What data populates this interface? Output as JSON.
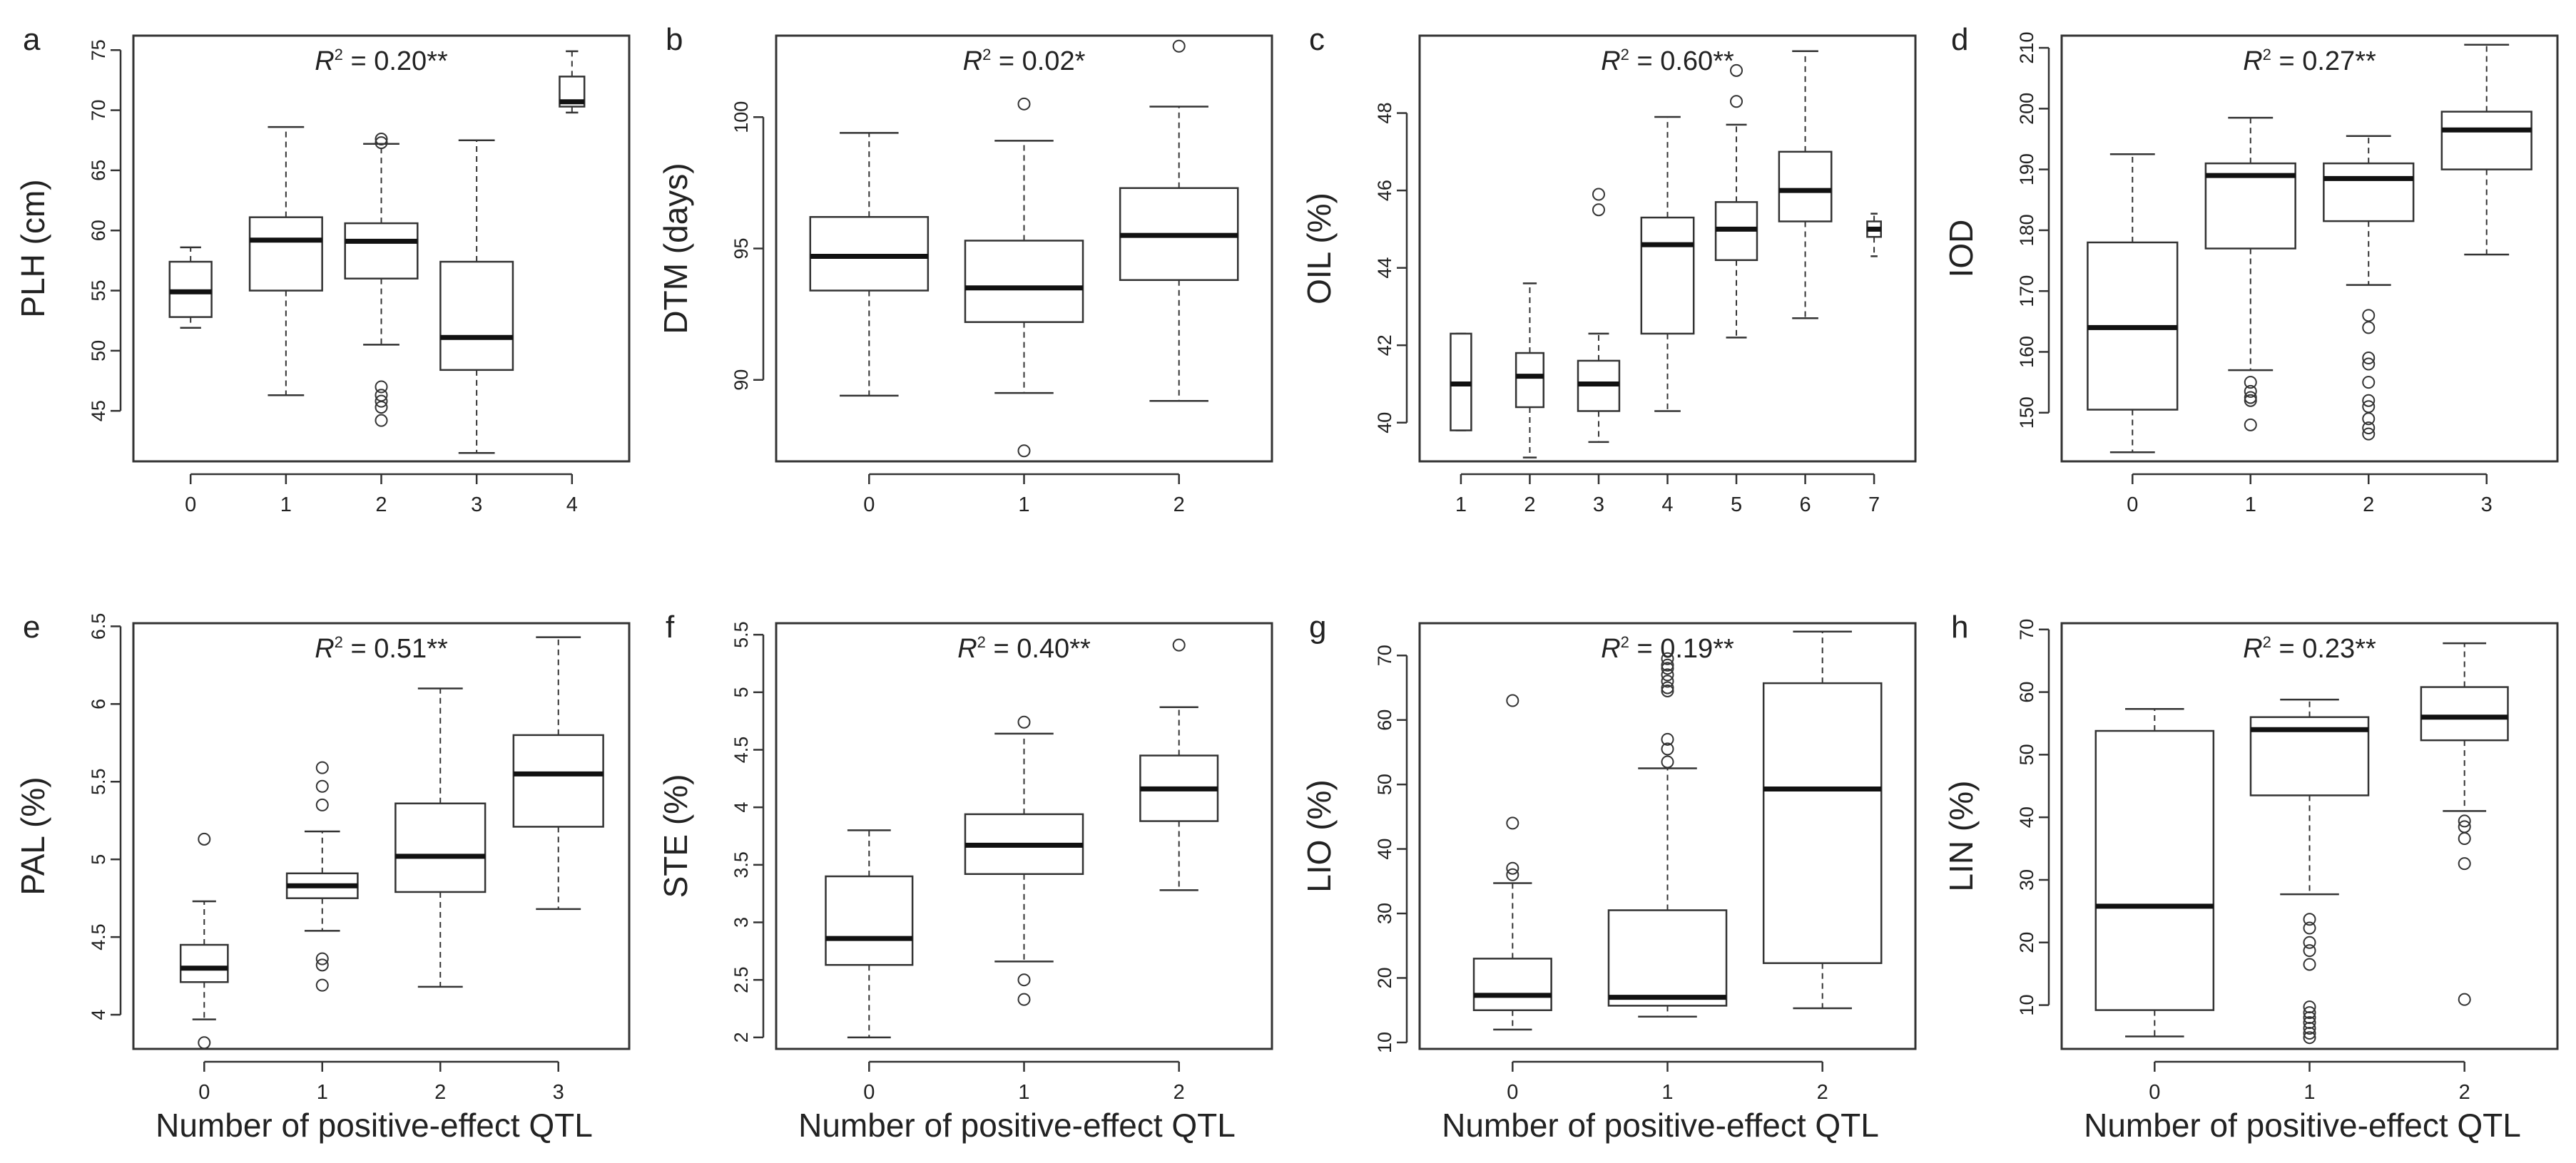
{
  "chart_data": [
    {
      "type": "box",
      "label": "a",
      "ylabel": "PLH (cm)",
      "r2": "= 0.20**",
      "ylim": [
        40.8,
        76.2
      ],
      "yticks": [
        45,
        50,
        55,
        60,
        65,
        70,
        75
      ],
      "xlim": [
        -0.6,
        4.6
      ],
      "xlabel": "",
      "boxes": [
        {
          "x": 0,
          "wmin": 51.9,
          "q1": 52.8,
          "med": 54.9,
          "q3": 57.4,
          "wmax": 58.6,
          "out": [],
          "half": 0.22
        },
        {
          "x": 1,
          "wmin": 46.3,
          "q1": 55.0,
          "med": 59.2,
          "q3": 61.1,
          "wmax": 68.6,
          "out": [],
          "half": 0.38
        },
        {
          "x": 2,
          "wmin": 50.5,
          "q1": 56.0,
          "med": 59.1,
          "q3": 60.6,
          "wmax": 67.2,
          "out": [
            67.6,
            67.3,
            47.0,
            46.3,
            45.8,
            45.3,
            44.2
          ],
          "half": 0.38
        },
        {
          "x": 3,
          "wmin": 41.5,
          "q1": 48.4,
          "med": 51.1,
          "q3": 57.4,
          "wmax": 67.5,
          "out": [],
          "half": 0.38
        },
        {
          "x": 4,
          "wmin": 69.8,
          "q1": 70.3,
          "med": 70.7,
          "q3": 72.8,
          "wmax": 74.9,
          "out": [],
          "half": 0.13
        }
      ]
    },
    {
      "type": "box",
      "label": "b",
      "ylabel": "DTM (days)",
      "r2": "= 0.02*",
      "ylim": [
        86.9,
        103.1
      ],
      "yticks": [
        90,
        95,
        100
      ],
      "xlim": [
        -0.6,
        2.6
      ],
      "xlabel": "",
      "boxes": [
        {
          "x": 0,
          "wmin": 89.4,
          "q1": 93.4,
          "med": 94.7,
          "q3": 96.2,
          "wmax": 99.4,
          "out": [],
          "half": 0.38
        },
        {
          "x": 1,
          "wmin": 89.5,
          "q1": 92.2,
          "med": 93.5,
          "q3": 95.3,
          "wmax": 99.1,
          "out": [
            100.5,
            87.3
          ],
          "half": 0.38
        },
        {
          "x": 2,
          "wmin": 89.2,
          "q1": 93.8,
          "med": 95.5,
          "q3": 97.3,
          "wmax": 100.4,
          "out": [
            102.7
          ],
          "half": 0.38
        }
      ]
    },
    {
      "type": "box",
      "label": "c",
      "ylabel": "OIL (%)",
      "r2": "= 0.60**",
      "ylim": [
        39.0,
        50.0
      ],
      "yticks": [
        40,
        42,
        44,
        46,
        48
      ],
      "xlim": [
        0.4,
        7.6
      ],
      "xlabel": "",
      "boxes": [
        {
          "x": 1,
          "wmin": 39.8,
          "q1": 39.8,
          "med": 41.0,
          "q3": 42.3,
          "wmax": 42.3,
          "out": [],
          "half": 0.15
        },
        {
          "x": 2,
          "wmin": 39.1,
          "q1": 40.4,
          "med": 41.2,
          "q3": 41.8,
          "wmax": 43.6,
          "out": [],
          "half": 0.2
        },
        {
          "x": 3,
          "wmin": 39.5,
          "q1": 40.3,
          "med": 41.0,
          "q3": 41.6,
          "wmax": 42.3,
          "out": [
            45.9,
            45.5
          ],
          "half": 0.3
        },
        {
          "x": 4,
          "wmin": 40.3,
          "q1": 42.3,
          "med": 44.6,
          "q3": 45.3,
          "wmax": 47.9,
          "out": [],
          "half": 0.38
        },
        {
          "x": 5,
          "wmin": 42.2,
          "q1": 44.2,
          "med": 45.0,
          "q3": 45.7,
          "wmax": 47.7,
          "out": [
            49.1,
            48.3
          ],
          "half": 0.3
        },
        {
          "x": 6,
          "wmin": 42.7,
          "q1": 45.2,
          "med": 46.0,
          "q3": 47.0,
          "wmax": 49.6,
          "out": [],
          "half": 0.38
        },
        {
          "x": 7,
          "wmin": 44.3,
          "q1": 44.8,
          "med": 45.0,
          "q3": 45.2,
          "wmax": 45.4,
          "out": [],
          "half": 0.1
        }
      ]
    },
    {
      "type": "box",
      "label": "d",
      "ylabel": "IOD",
      "r2": "= 0.27**",
      "ylim": [
        142,
        212
      ],
      "yticks": [
        150,
        160,
        170,
        180,
        190,
        200,
        210
      ],
      "xlim": [
        -0.6,
        3.6
      ],
      "xlabel": "",
      "boxes": [
        {
          "x": 0,
          "wmin": 143.5,
          "q1": 150.5,
          "med": 164.0,
          "q3": 178.0,
          "wmax": 192.5,
          "out": [],
          "half": 0.38
        },
        {
          "x": 1,
          "wmin": 157.0,
          "q1": 177.0,
          "med": 189.0,
          "q3": 191.0,
          "wmax": 198.5,
          "out": [
            155.0,
            153.5,
            152.5,
            152.0,
            148.0
          ],
          "half": 0.38
        },
        {
          "x": 2,
          "wmin": 171.0,
          "q1": 181.5,
          "med": 188.5,
          "q3": 191.0,
          "wmax": 195.5,
          "out": [
            166.0,
            164.0,
            159.0,
            158.0,
            155.0,
            152.0,
            151.0,
            149.0,
            147.5,
            146.5
          ],
          "half": 0.38
        },
        {
          "x": 3,
          "wmin": 176.0,
          "q1": 190.0,
          "med": 196.5,
          "q3": 199.5,
          "wmax": 210.5,
          "out": [],
          "half": 0.38
        }
      ]
    },
    {
      "type": "box",
      "label": "e",
      "ylabel": "PAL (%)",
      "r2": "= 0.51**",
      "ylim": [
        3.78,
        6.52
      ],
      "yticks": [
        4.0,
        4.5,
        5.0,
        5.5,
        6.0,
        6.5
      ],
      "xlim": [
        -0.6,
        3.6
      ],
      "xlabel": "Number of positive-effect QTL",
      "boxes": [
        {
          "x": 0,
          "wmin": 3.97,
          "q1": 4.21,
          "med": 4.3,
          "q3": 4.45,
          "wmax": 4.73,
          "out": [
            5.13,
            3.82
          ],
          "half": 0.2
        },
        {
          "x": 1,
          "wmin": 4.54,
          "q1": 4.75,
          "med": 4.83,
          "q3": 4.91,
          "wmax": 5.18,
          "out": [
            5.59,
            5.47,
            5.35,
            4.36,
            4.32,
            4.19
          ],
          "half": 0.3
        },
        {
          "x": 2,
          "wmin": 4.18,
          "q1": 4.79,
          "med": 5.02,
          "q3": 5.36,
          "wmax": 6.1,
          "out": [],
          "half": 0.38
        },
        {
          "x": 3,
          "wmin": 4.68,
          "q1": 5.21,
          "med": 5.55,
          "q3": 5.8,
          "wmax": 6.43,
          "out": [],
          "half": 0.38
        }
      ]
    },
    {
      "type": "box",
      "label": "f",
      "ylabel": "STE (%)",
      "r2": "= 0.40**",
      "ylim": [
        1.9,
        5.6
      ],
      "yticks": [
        2.0,
        2.5,
        3.0,
        3.5,
        4.0,
        4.5,
        5.0,
        5.5
      ],
      "xlim": [
        -0.6,
        2.6
      ],
      "xlabel": "Number of positive-effect QTL",
      "boxes": [
        {
          "x": 0,
          "wmin": 2.0,
          "q1": 2.63,
          "med": 2.86,
          "q3": 3.4,
          "wmax": 3.8,
          "out": [],
          "half": 0.28
        },
        {
          "x": 1,
          "wmin": 2.66,
          "q1": 3.42,
          "med": 3.67,
          "q3": 3.94,
          "wmax": 4.64,
          "out": [
            4.74,
            2.5,
            2.33
          ],
          "half": 0.38
        },
        {
          "x": 2,
          "wmin": 3.28,
          "q1": 3.88,
          "med": 4.16,
          "q3": 4.45,
          "wmax": 4.87,
          "out": [
            5.41
          ],
          "half": 0.25
        }
      ]
    },
    {
      "type": "box",
      "label": "g",
      "ylabel": "LIO (%)",
      "r2": "= 0.19**",
      "ylim": [
        9,
        75
      ],
      "yticks": [
        10,
        20,
        30,
        40,
        50,
        60,
        70
      ],
      "xlim": [
        -0.6,
        2.6
      ],
      "xlabel": "Number of positive-effect QTL",
      "boxes": [
        {
          "x": 0,
          "wmin": 12.0,
          "q1": 15.0,
          "med": 17.3,
          "q3": 23.0,
          "wmax": 34.7,
          "out": [
            63.0,
            44.0,
            37.0,
            36.0
          ],
          "half": 0.25
        },
        {
          "x": 1,
          "wmin": 14.0,
          "q1": 15.7,
          "med": 17.0,
          "q3": 30.5,
          "wmax": 52.5,
          "out": [
            69.5,
            68.5,
            68.0,
            67.0,
            66.0,
            65.0,
            64.5,
            57.0,
            55.5,
            53.5
          ],
          "half": 0.38
        },
        {
          "x": 2,
          "wmin": 15.3,
          "q1": 22.3,
          "med": 49.3,
          "q3": 65.7,
          "wmax": 73.7,
          "out": [],
          "half": 0.38
        }
      ]
    },
    {
      "type": "box",
      "label": "h",
      "ylabel": "LIN (%)",
      "r2": "= 0.23**",
      "ylim": [
        3,
        71
      ],
      "yticks": [
        10,
        20,
        30,
        40,
        50,
        60,
        70
      ],
      "xlim": [
        -0.6,
        2.6
      ],
      "xlabel": "Number of positive-effect QTL",
      "boxes": [
        {
          "x": 0,
          "wmin": 5.0,
          "q1": 9.2,
          "med": 25.8,
          "q3": 53.8,
          "wmax": 57.3,
          "out": [],
          "half": 0.38
        },
        {
          "x": 1,
          "wmin": 27.7,
          "q1": 43.5,
          "med": 54.0,
          "q3": 56.0,
          "wmax": 58.8,
          "out": [
            23.7,
            22.3,
            20.0,
            18.7,
            16.5,
            9.7,
            8.8,
            8.0,
            7.2,
            6.3,
            5.5,
            4.8
          ],
          "half": 0.38
        },
        {
          "x": 2,
          "wmin": 41.0,
          "q1": 52.3,
          "med": 56.0,
          "q3": 60.8,
          "wmax": 67.8,
          "out": [
            39.4,
            38.5,
            36.6,
            32.6,
            10.9
          ],
          "half": 0.28
        }
      ]
    }
  ]
}
